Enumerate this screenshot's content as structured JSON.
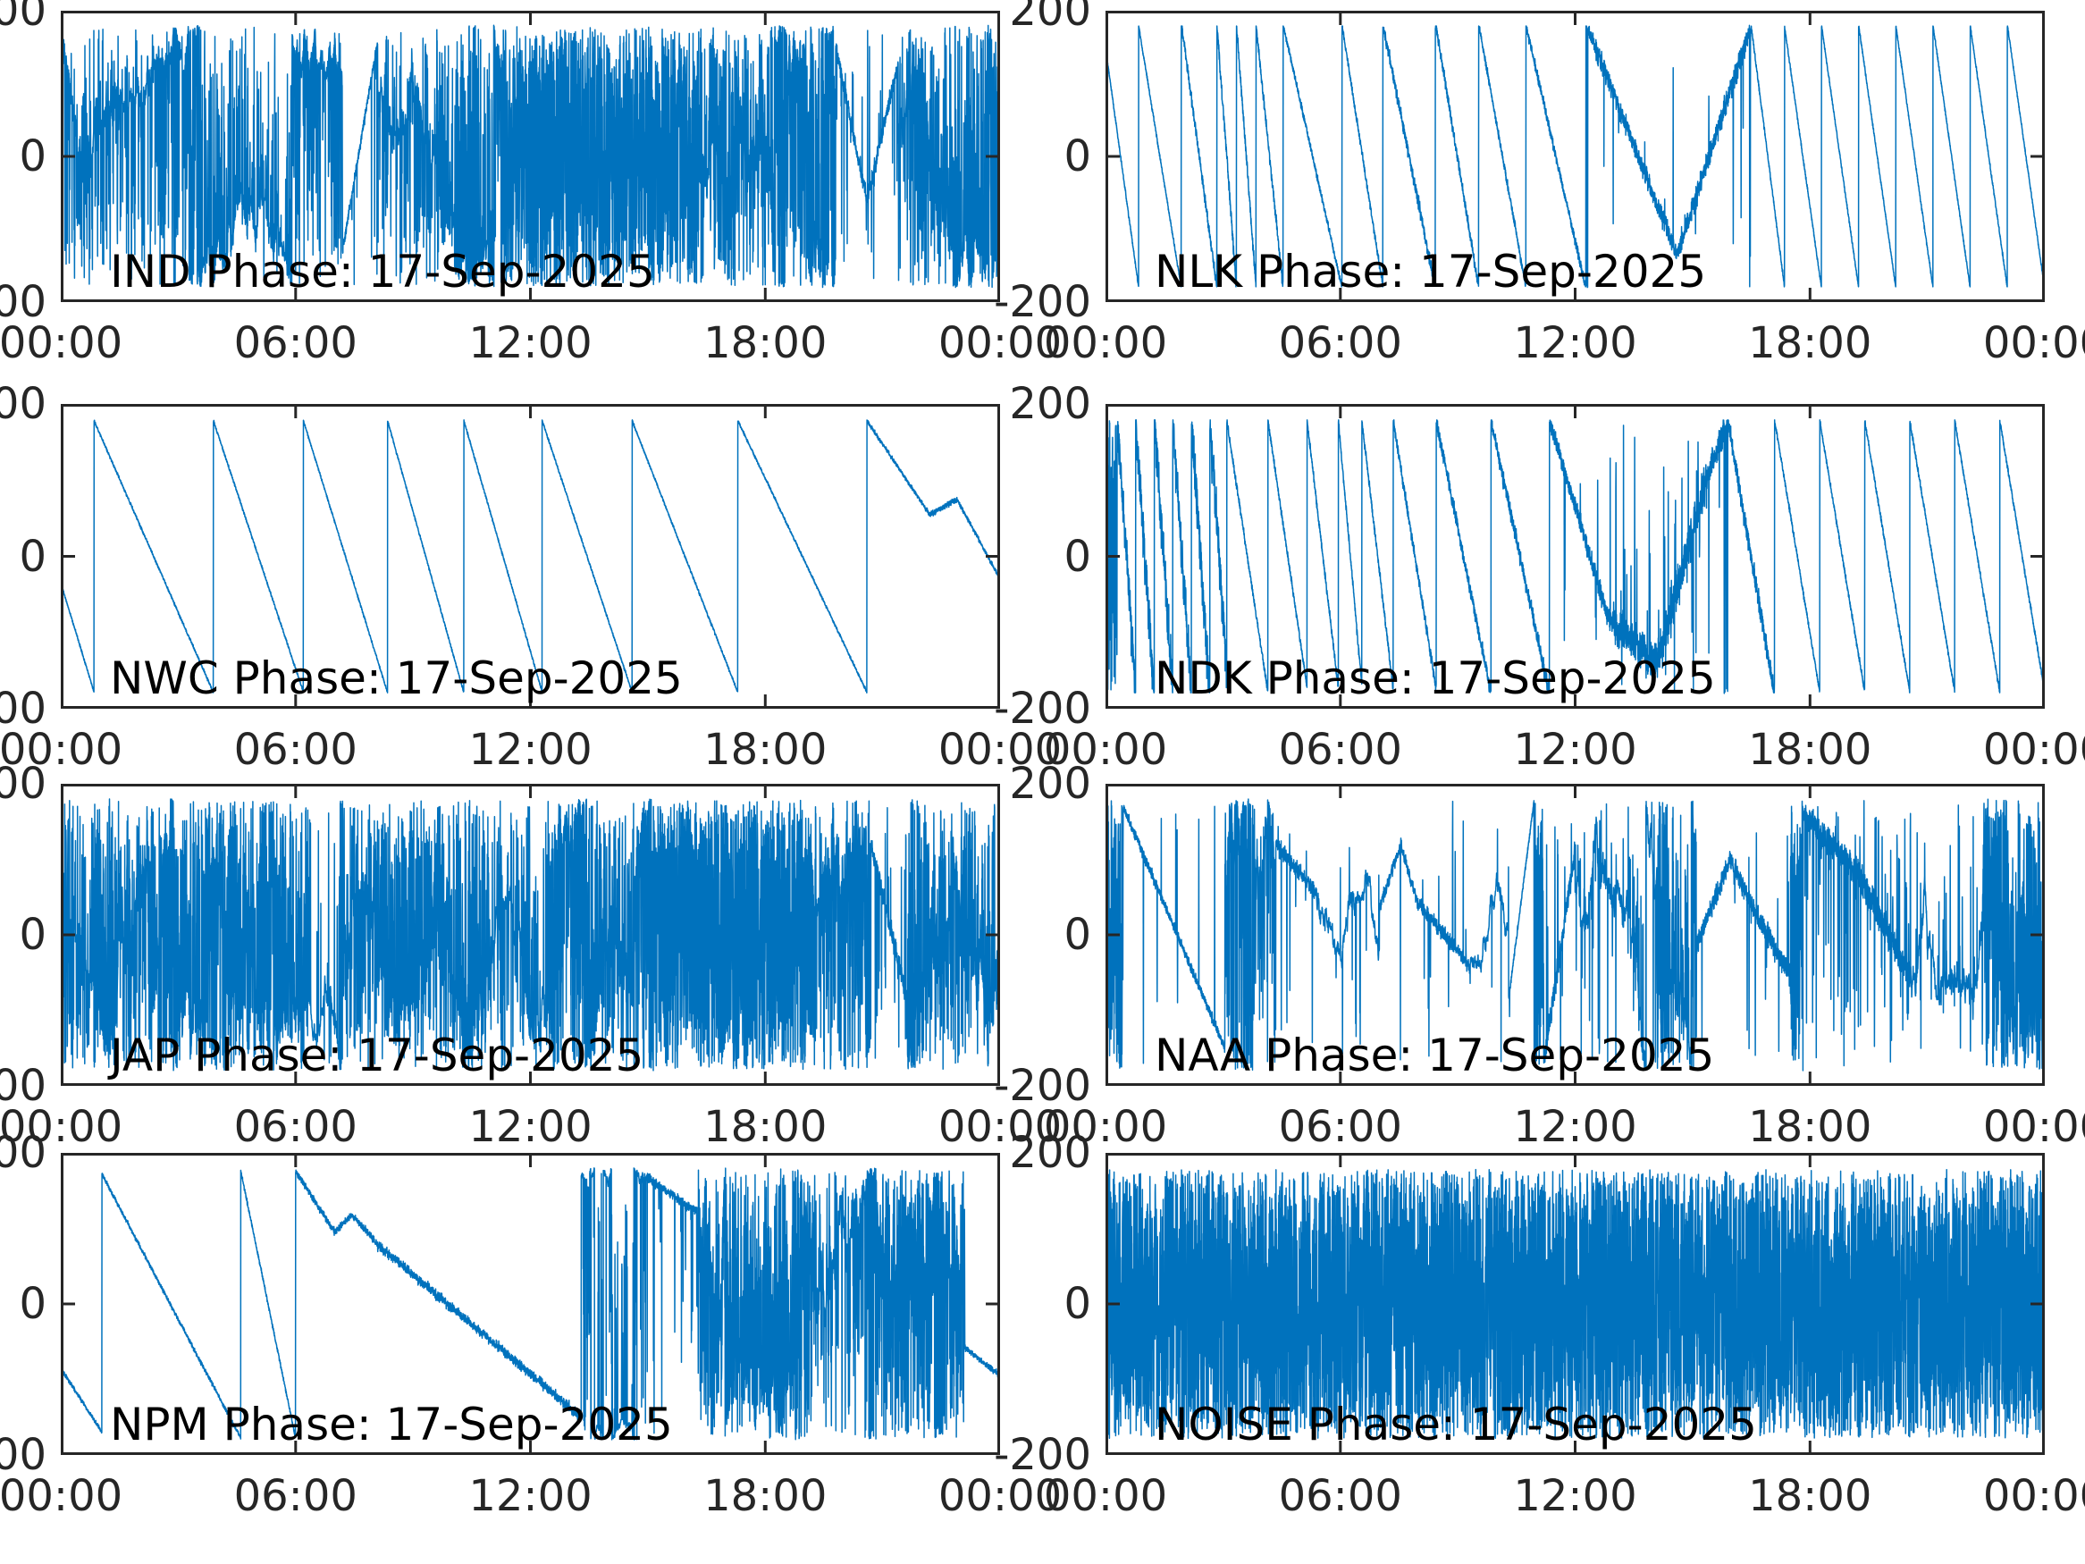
{
  "figure": {
    "background": "#ffffff",
    "line_color": "#0072BD",
    "axis_color": "#262626",
    "tick_label_color": "#262626",
    "annotation_color": "#000000",
    "date_shown": "17-Sep-2025"
  },
  "axes": {
    "x_ticks": [
      "00:00",
      "06:00",
      "12:00",
      "18:00",
      "00:00"
    ],
    "x_tick_hours": [
      0,
      6,
      12,
      18,
      24
    ],
    "y_ticks": [
      "200",
      "0",
      "-200"
    ],
    "y_tick_values": [
      200,
      0,
      -200
    ],
    "ylim": [
      -200,
      200
    ],
    "x_range_hours": [
      0,
      24
    ],
    "grid": false,
    "box": true,
    "tick_direction": "in"
  },
  "chart_data": [
    {
      "type": "line",
      "station": "IND",
      "label": "IND Phase: 17-Sep-2025",
      "ylim": [
        -200,
        200
      ],
      "x_range_hours": [
        0,
        24
      ],
      "seed": 11,
      "description": "Dense wrapped-phase noise all day; solid saturated band ~11:30-16:15; clearer wandering V-shape ~20:00-21:30.",
      "segments": [
        [
          0,
          0.4,
          "line",
          170,
          40,
          18,
          0.15
        ],
        [
          0.4,
          7.2,
          "walk",
          40,
          14,
          0.26,
          0
        ],
        [
          7.2,
          8.1,
          "line",
          -130,
          160,
          8,
          0.05
        ],
        [
          8.1,
          11.4,
          "walk",
          100,
          16,
          0.36,
          -6
        ],
        [
          11.4,
          16.3,
          "uniform"
        ],
        [
          16.3,
          19.8,
          "walk",
          0,
          20,
          0.5,
          0
        ],
        [
          19.8,
          20.6,
          "line",
          150,
          -60,
          12,
          0.08
        ],
        [
          20.6,
          21.4,
          "line",
          -60,
          130,
          12,
          0.08
        ],
        [
          21.4,
          24,
          "walk",
          60,
          18,
          0.45,
          0
        ]
      ]
    },
    {
      "type": "line",
      "station": "NLK",
      "label": "NLK Phase: 17-Sep-2025",
      "ylim": [
        -200,
        200
      ],
      "x_range_hours": [
        0,
        24
      ],
      "seed": 22,
      "description": "Descending sawtooth phase ramps; fast narrow teeth 02:30-04:30, slower midday, noisy V dip 12:30-16:30, regular ~1 h teeth 17:00-24:00.",
      "segments": [
        [
          0,
          0.85,
          "ramp",
          150,
          -390,
          3
        ],
        [
          0.85,
          1.95,
          "ramp",
          178,
          -330,
          3
        ],
        [
          1.95,
          2.85,
          "ramp",
          178,
          -400,
          8
        ],
        [
          2.85,
          3.35,
          "ramp",
          178,
          -720,
          10
        ],
        [
          3.35,
          3.85,
          "ramp",
          178,
          -720,
          10
        ],
        [
          3.85,
          4.55,
          "ramp",
          178,
          -520,
          8
        ],
        [
          4.55,
          6.05,
          "ramp",
          178,
          -240,
          5
        ],
        [
          6.05,
          7.1,
          "ramp",
          178,
          -345,
          6
        ],
        [
          7.1,
          8.45,
          "ramp",
          178,
          -270,
          10
        ],
        [
          8.45,
          9.55,
          "ramp",
          178,
          -330,
          8
        ],
        [
          9.55,
          10.75,
          "ramp",
          178,
          -300,
          6
        ],
        [
          10.75,
          12.3,
          "ramp",
          178,
          -235,
          8
        ],
        [
          12.3,
          14.6,
          "line",
          178,
          -135,
          14,
          0.02
        ],
        [
          14.6,
          16.5,
          "line",
          -135,
          178,
          16,
          0.02
        ],
        [
          16.5,
          17.35,
          "ramp",
          178,
          -420,
          4
        ],
        [
          17.35,
          18.3,
          "ramp",
          178,
          -380,
          3
        ],
        [
          18.3,
          19.25,
          "ramp",
          178,
          -380,
          3
        ],
        [
          19.25,
          20.2,
          "ramp",
          178,
          -380,
          3
        ],
        [
          20.2,
          21.15,
          "ramp",
          178,
          -380,
          3
        ],
        [
          21.15,
          22.1,
          "ramp",
          178,
          -380,
          3
        ],
        [
          22.1,
          23.05,
          "ramp",
          178,
          -380,
          3
        ],
        [
          23.05,
          24,
          "ramp",
          178,
          -380,
          3
        ]
      ]
    },
    {
      "type": "line",
      "station": "NWC",
      "label": "NWC Phase: 17-Sep-2025",
      "ylim": [
        -200,
        200
      ],
      "x_range_hours": [
        0,
        24
      ],
      "seed": 33,
      "description": "Clean slow sawtooth: ~9 descending ramps (+180 to -180), resets near 01:10, 03:45, 06:15, 08:40, 10:15, 12:20, 14:50, 17:20, 20:30; slower wiggly descent after 20:30.",
      "segments": [
        [
          0,
          0.85,
          "line",
          -35,
          -178,
          2,
          0
        ],
        [
          0.85,
          3.9,
          "ramp",
          178,
          -117,
          2
        ],
        [
          3.9,
          6.2,
          "ramp",
          178,
          -155,
          2
        ],
        [
          6.2,
          8.35,
          "ramp",
          178,
          -166,
          2
        ],
        [
          8.35,
          10.3,
          "ramp",
          178,
          -183,
          2
        ],
        [
          10.3,
          12.3,
          "ramp",
          178,
          -178,
          2
        ],
        [
          12.3,
          14.6,
          "ramp",
          178,
          -155,
          2
        ],
        [
          14.6,
          17.3,
          "ramp",
          178,
          -132,
          2
        ],
        [
          17.3,
          20.6,
          "ramp",
          178,
          -108,
          2
        ],
        [
          20.6,
          22.2,
          "line",
          178,
          55,
          3,
          0
        ],
        [
          22.2,
          22.9,
          "line",
          55,
          75,
          4,
          0
        ],
        [
          22.9,
          24,
          "line",
          75,
          -30,
          3,
          0
        ]
      ]
    },
    {
      "type": "line",
      "station": "NDK",
      "label": "NDK Phase: 17-Sep-2025",
      "ylim": [
        -200,
        200
      ],
      "x_range_hours": [
        0,
        24
      ],
      "seed": 44,
      "description": "Very dense noisy ramps 00:00-03:00; cleaner sawteeth morning; noisy V blob 13:00-16:00; regular ~1.15 h teeth 17:00-24:00.",
      "segments": [
        [
          0,
          0.3,
          "uniform"
        ],
        [
          0.3,
          3.1,
          "ramp",
          178,
          -760,
          35
        ],
        [
          3.1,
          4.15,
          "ramp",
          178,
          -340,
          5
        ],
        [
          4.15,
          5.15,
          "ramp",
          178,
          -350,
          5
        ],
        [
          5.15,
          5.95,
          "ramp",
          178,
          -440,
          6
        ],
        [
          5.95,
          6.55,
          "ramp",
          178,
          -580,
          6
        ],
        [
          6.55,
          7.35,
          "ramp",
          178,
          -440,
          6
        ],
        [
          7.35,
          8.45,
          "ramp",
          178,
          -320,
          8
        ],
        [
          8.45,
          9.85,
          "ramp",
          178,
          -255,
          10
        ],
        [
          9.85,
          11.35,
          "ramp",
          178,
          -240,
          12
        ],
        [
          11.35,
          12.9,
          "line",
          178,
          -90,
          14,
          0.02
        ],
        [
          12.9,
          14.1,
          "line",
          -90,
          -140,
          28,
          0.05
        ],
        [
          14.1,
          15.4,
          "line",
          -140,
          110,
          32,
          0.06
        ],
        [
          15.4,
          15.9,
          "line",
          110,
          178,
          22,
          0.05
        ],
        [
          15.9,
          17.1,
          "ramp",
          178,
          -300,
          14
        ],
        [
          17.1,
          18.25,
          "ramp",
          178,
          -310,
          4
        ],
        [
          18.25,
          19.4,
          "ramp",
          178,
          -310,
          4
        ],
        [
          19.4,
          20.55,
          "ramp",
          178,
          -310,
          4
        ],
        [
          20.55,
          21.7,
          "ramp",
          178,
          -310,
          4
        ],
        [
          21.7,
          22.85,
          "ramp",
          178,
          -310,
          4
        ],
        [
          22.85,
          24,
          "ramp",
          178,
          -310,
          4
        ]
      ]
    },
    {
      "type": "line",
      "station": "JAP",
      "label": "JAP Phase: 17-Sep-2025",
      "ylim": [
        -200,
        200
      ],
      "x_range_hours": [
        0,
        24
      ],
      "seed": 55,
      "description": "Dense wrapped noise columns most of the day; solid saturated block ~15:20-19:20; brief clearer bands near 06:40, 11:30 and 21:00.",
      "segments": [
        [
          0,
          6.4,
          "walk",
          0,
          22,
          0.5,
          0
        ],
        [
          6.4,
          7.1,
          "walk",
          null,
          10,
          0.12,
          0
        ],
        [
          7.1,
          11.0,
          "walk",
          null,
          22,
          0.46,
          0
        ],
        [
          11.0,
          12.4,
          "walk",
          -30,
          13,
          0.25,
          0
        ],
        [
          12.4,
          15.3,
          "walk",
          null,
          22,
          0.48,
          0
        ],
        [
          15.3,
          19.3,
          "uniform"
        ],
        [
          19.3,
          20.7,
          "walk",
          40,
          20,
          0.5,
          0
        ],
        [
          20.7,
          21.6,
          "line",
          120,
          -80,
          14,
          0.1
        ],
        [
          21.6,
          24,
          "walk",
          null,
          20,
          0.48,
          0
        ]
      ]
    },
    {
      "type": "line",
      "station": "NAA",
      "label": "NAA Phase: 17-Sep-2025",
      "ylim": [
        -200,
        200
      ],
      "x_range_hours": [
        0,
        24
      ],
      "seed": 66,
      "description": "Smooth noisy descent 00:30-03:00 from +170 to -150; wrap bursts ~03:30 and 11:00; wandering noisy band near 0-100 midday; smooth hump 15:00-16:30; high noisy block 18:00-19:00; low band 20:30-22:30; dense columns to 24:00.",
      "segments": [
        [
          0,
          0.45,
          "uniform"
        ],
        [
          0.45,
          3.05,
          "line",
          170,
          -150,
          7,
          0.01
        ],
        [
          3.05,
          4.35,
          "walk",
          120,
          26,
          0.38,
          0
        ],
        [
          4.35,
          5.4,
          "line",
          120,
          55,
          12,
          0.03
        ],
        [
          5.4,
          7.0,
          "walk",
          45,
          10,
          0.05,
          0
        ],
        [
          7.0,
          7.55,
          "line",
          35,
          120,
          9,
          0.02
        ],
        [
          7.55,
          7.95,
          "line",
          120,
          45,
          9,
          0.02
        ],
        [
          7.95,
          9.3,
          "line",
          45,
          -40,
          11,
          0.04
        ],
        [
          9.3,
          10.3,
          "walk",
          -50,
          9,
          0.03,
          0
        ],
        [
          10.3,
          10.95,
          "line",
          -85,
          178,
          4,
          0.02
        ],
        [
          10.95,
          11.2,
          "uniform"
        ],
        [
          11.2,
          12.0,
          "line",
          -170,
          115,
          18,
          0.06
        ],
        [
          12.0,
          14.1,
          "walk",
          60,
          17,
          0.12,
          0
        ],
        [
          14.1,
          14.4,
          "uniform"
        ],
        [
          14.4,
          15.1,
          "walk",
          0,
          22,
          0.3,
          0
        ],
        [
          15.1,
          15.95,
          "line",
          -15,
          100,
          13,
          0.02
        ],
        [
          15.95,
          16.65,
          "line",
          100,
          25,
          13,
          0.02
        ],
        [
          16.65,
          17.5,
          "line",
          25,
          -55,
          16,
          0.05
        ],
        [
          17.5,
          17.8,
          "uniform"
        ],
        [
          17.8,
          19.2,
          "line",
          160,
          85,
          22,
          0.08
        ],
        [
          19.2,
          20.6,
          "line",
          85,
          -60,
          22,
          0.16
        ],
        [
          20.6,
          22.4,
          "walk",
          -80,
          15,
          0.08,
          0
        ],
        [
          22.4,
          24,
          "walk",
          null,
          26,
          0.55,
          0
        ]
      ]
    },
    {
      "type": "line",
      "station": "NPM",
      "label": "NPM Phase: 17-Sep-2025",
      "ylim": [
        -200,
        200
      ],
      "x_range_hours": [
        0,
        24
      ],
      "seed": 77,
      "description": "Slow descent then two large sawteeth (jumps to +170 near 01:00 and 04:40); long smooth noisy decay 06:00-13:20 from +175 to -150; high plateau with wrap lines 13:20-16:15; dense noisy wraps 16:15-23:00; clean tail near -90.",
      "segments": [
        [
          0,
          1.05,
          "line",
          -85,
          -170,
          3,
          0
        ],
        [
          1.05,
          4.6,
          "line",
          172,
          -178,
          3,
          0
        ],
        [
          4.6,
          6.0,
          "line",
          176,
          -178,
          3,
          0
        ],
        [
          6.0,
          7.0,
          "line",
          176,
          95,
          5,
          0
        ],
        [
          7.0,
          7.45,
          "line",
          95,
          118,
          5,
          0
        ],
        [
          7.45,
          8.1,
          "line",
          118,
          78,
          5,
          0
        ],
        [
          8.1,
          13.3,
          "line",
          78,
          -150,
          7,
          0
        ],
        [
          13.3,
          13.55,
          "walk",
          165,
          6,
          0.45,
          0
        ],
        [
          13.55,
          14.95,
          "walk",
          165,
          5,
          0.12,
          0
        ],
        [
          14.95,
          16.25,
          "line",
          168,
          122,
          7,
          0.04
        ],
        [
          16.25,
          19.3,
          "walk",
          0,
          26,
          0.55,
          0
        ],
        [
          19.3,
          20.9,
          "walk",
          -20,
          22,
          0.35,
          0
        ],
        [
          20.9,
          23.1,
          "walk",
          null,
          26,
          0.55,
          0
        ],
        [
          23.1,
          24,
          "line",
          -58,
          -95,
          4,
          0
        ]
      ]
    },
    {
      "type": "line",
      "station": "NOISE",
      "label": "NOISE Phase: 17-Sep-2025",
      "ylim": [
        -200,
        200
      ],
      "x_range_hours": [
        0,
        24
      ],
      "seed": 88,
      "description": "Uniform full-range wrapped phase noise across the entire day (solid blue block with small white gaps).",
      "segments": [
        [
          0,
          24,
          "uniform"
        ]
      ]
    }
  ]
}
